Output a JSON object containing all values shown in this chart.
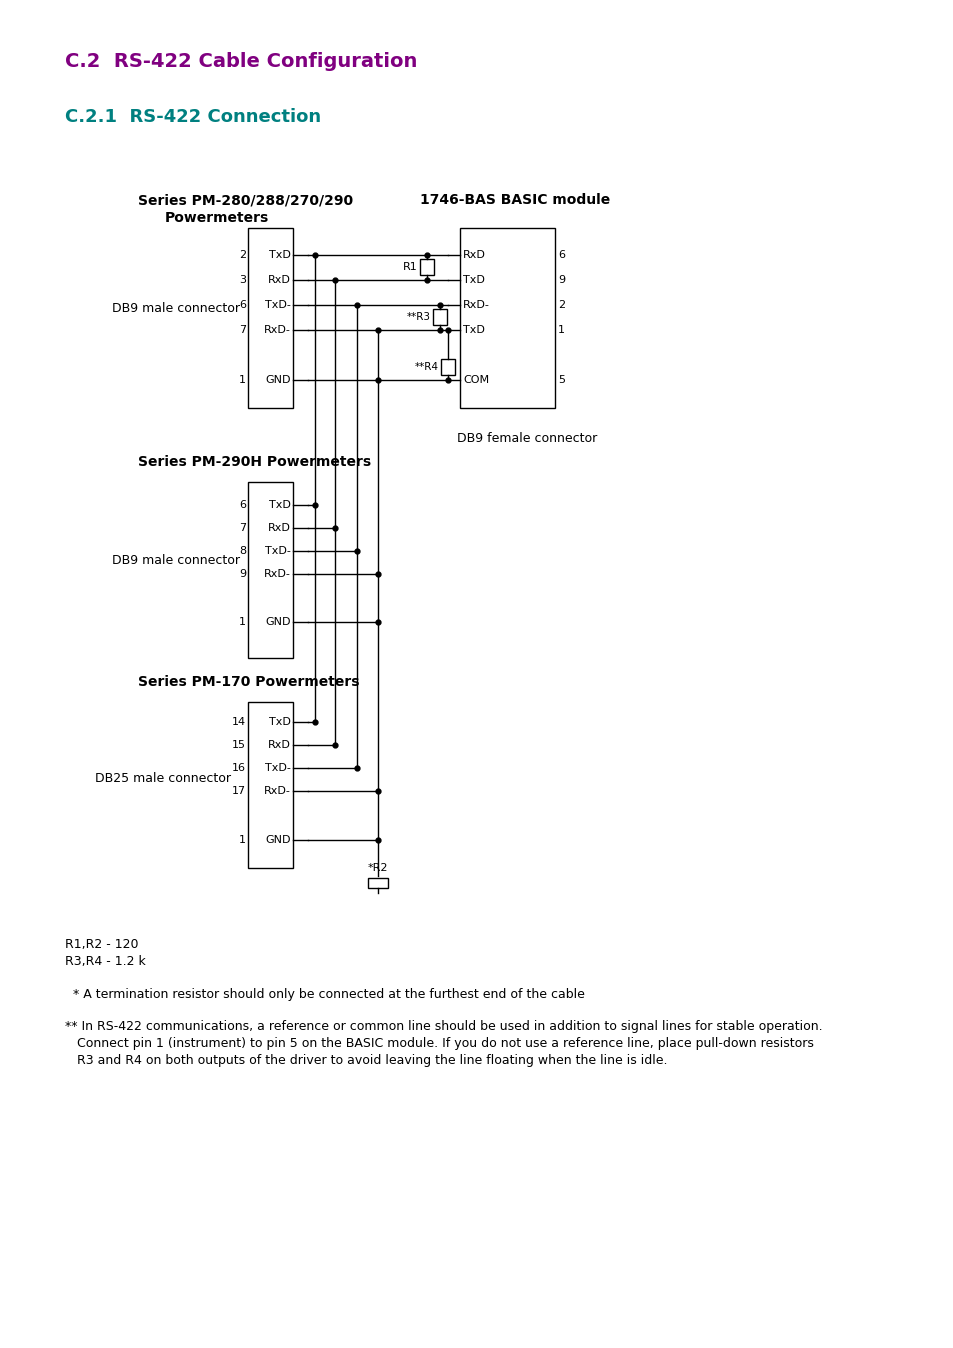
{
  "title1": "C.2  RS-422 Cable Configuration",
  "title2": "C.2.1  RS-422 Connection",
  "title1_color": "#800080",
  "title2_color": "#008080",
  "bg_color": "#ffffff",
  "text_color": "#000000",
  "section1_title": "Series PM-280/288/270/290",
  "section1_sub": "Powermeters",
  "section1_connector": "DB9 male connector",
  "section2_title": "Series PM-290H Powermeters",
  "section2_connector": "DB9 male connector",
  "section3_title": "Series PM-170 Powermeters",
  "section3_connector": "DB25 male connector",
  "bas_title": "1746-BAS BASIC module",
  "bas_connector": "DB9 female connector",
  "r1_label": "R1",
  "r2_label": "*R2",
  "r3_label": "**R3",
  "r4_label": "**R4",
  "note_r1r2": "R1,R2 - 120",
  "note_r3r4": "R3,R4 - 1.2 k",
  "note_star": "  * A termination resistor should only be connected at the furthest end of the cable",
  "note_doublestar_line1": "** In RS-422 communications, a reference or common line should be used in addition to signal lines for stable operation.",
  "note_doublestar_line2": "   Connect pin 1 (instrument) to pin 5 on the BASIC module. If you do not use a reference line, place pull-down resistors",
  "note_doublestar_line3": "   R3 and R4 on both outputs of the driver to avoid leaving the line floating when the line is idle."
}
